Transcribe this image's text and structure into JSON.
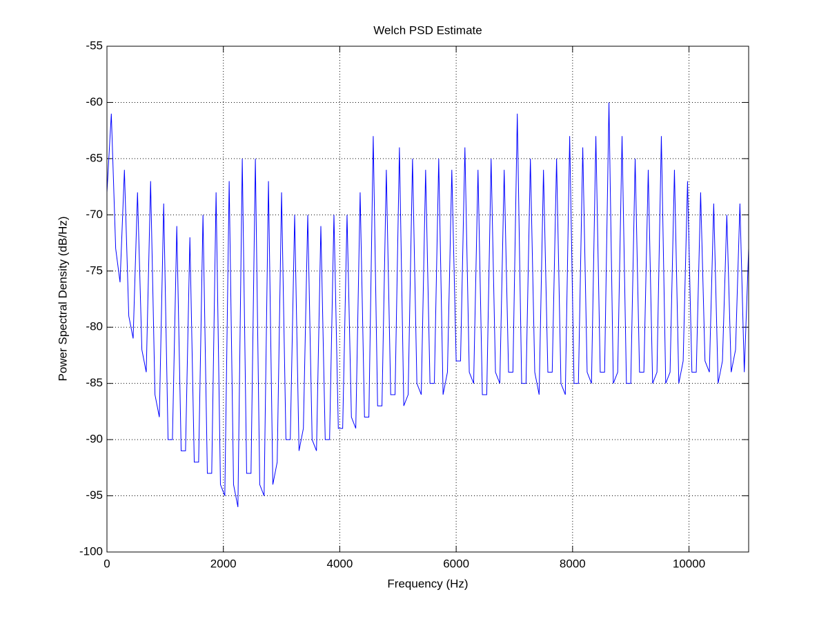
{
  "chart_data": {
    "type": "line",
    "title": "Welch PSD Estimate",
    "xlabel": "Frequency (Hz)",
    "ylabel": "Power Spectral Density (dB/Hz)",
    "x": [
      0,
      75,
      150,
      225,
      300,
      375,
      450,
      525,
      600,
      675,
      750,
      825,
      900,
      975,
      1050,
      1125,
      1200,
      1275,
      1350,
      1425,
      1500,
      1575,
      1650,
      1725,
      1800,
      1875,
      1950,
      2025,
      2100,
      2175,
      2250,
      2325,
      2400,
      2475,
      2550,
      2625,
      2700,
      2775,
      2850,
      2925,
      3000,
      3075,
      3150,
      3225,
      3300,
      3375,
      3450,
      3525,
      3600,
      3675,
      3750,
      3825,
      3900,
      3975,
      4050,
      4125,
      4200,
      4275,
      4350,
      4425,
      4500,
      4575,
      4650,
      4725,
      4800,
      4875,
      4950,
      5025,
      5100,
      5175,
      5250,
      5325,
      5400,
      5475,
      5550,
      5625,
      5700,
      5775,
      5850,
      5925,
      6000,
      6075,
      6150,
      6225,
      6300,
      6375,
      6450,
      6525,
      6600,
      6675,
      6750,
      6825,
      6900,
      6975,
      7050,
      7125,
      7200,
      7275,
      7350,
      7425,
      7500,
      7575,
      7650,
      7725,
      7800,
      7875,
      7950,
      8025,
      8100,
      8175,
      8250,
      8325,
      8400,
      8475,
      8550,
      8625,
      8700,
      8775,
      8850,
      8925,
      9000,
      9075,
      9150,
      9225,
      9300,
      9375,
      9450,
      9525,
      9600,
      9675,
      9750,
      9825,
      9900,
      9975,
      10050,
      10125,
      10200,
      10275,
      10350,
      10425,
      10500,
      10575,
      10650,
      10725,
      10800,
      10875,
      10950,
      11025
    ],
    "values": [
      -68,
      -61,
      -73,
      -76,
      -66,
      -79,
      -81,
      -68,
      -82,
      -84,
      -67,
      -86,
      -88,
      -69,
      -90,
      -90,
      -71,
      -91,
      -91,
      -72,
      -92,
      -92,
      -70,
      -93,
      -93,
      -68,
      -94,
      -95,
      -67,
      -94,
      -96,
      -65,
      -93,
      -93,
      -65,
      -94,
      -95,
      -67,
      -94,
      -92,
      -68,
      -90,
      -90,
      -70,
      -91,
      -89,
      -70,
      -90,
      -91,
      -71,
      -90,
      -90,
      -70,
      -89,
      -89,
      -70,
      -88,
      -89,
      -68,
      -88,
      -88,
      -63,
      -87,
      -87,
      -66,
      -86,
      -86,
      -64,
      -87,
      -86,
      -65,
      -85,
      -86,
      -66,
      -85,
      -85,
      -65,
      -86,
      -84,
      -66,
      -83,
      -83,
      -64,
      -84,
      -85,
      -66,
      -86,
      -86,
      -65,
      -84,
      -85,
      -66,
      -84,
      -84,
      -61,
      -85,
      -85,
      -65,
      -84,
      -86,
      -66,
      -84,
      -84,
      -65,
      -85,
      -86,
      -63,
      -85,
      -85,
      -64,
      -84,
      -85,
      -63,
      -84,
      -84,
      -60,
      -85,
      -84,
      -63,
      -85,
      -85,
      -65,
      -84,
      -84,
      -66,
      -85,
      -84,
      -63,
      -85,
      -84,
      -66,
      -85,
      -83,
      -67,
      -84,
      -84,
      -68,
      -83,
      -84,
      -69,
      -85,
      -83,
      -70,
      -84,
      -82,
      -69,
      -84,
      -73
    ],
    "color": "#0000ff",
    "xlim": [
      0,
      11025
    ],
    "xticks": [
      0,
      2000,
      4000,
      6000,
      8000,
      10000
    ],
    "ylim": [
      -100,
      -55
    ],
    "yticks": [
      -100,
      -95,
      -90,
      -85,
      -80,
      -75,
      -70,
      -65,
      -60,
      -55
    ],
    "grid": true
  }
}
